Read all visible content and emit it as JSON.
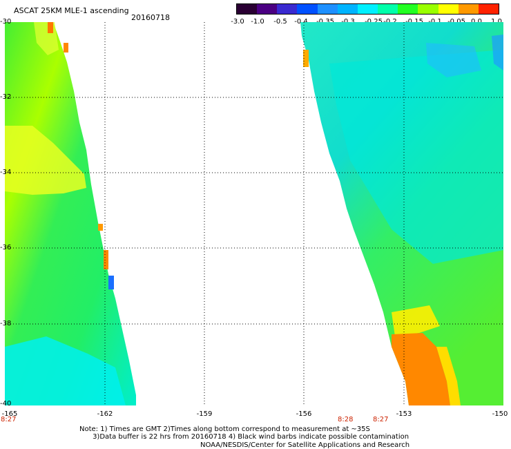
{
  "header": {
    "title": "ASCAT 25KM MLE-1 ascending",
    "date": "20160718"
  },
  "colorbar": {
    "labels": [
      "-3.0",
      "-1.0",
      "-0.5",
      "-0.4",
      "-0.35",
      "-0.3",
      "-0.25",
      "-0.2",
      "-0.15",
      "-0.1",
      "-0.05",
      "0.0",
      "1.0"
    ],
    "colors": [
      "#2a0033",
      "#4b0082",
      "#3a2ad0",
      "#0050ff",
      "#1e90ff",
      "#00b4ff",
      "#00f0ff",
      "#00ffaa",
      "#22ff22",
      "#99ff00",
      "#ffff00",
      "#ff9900",
      "#ff2200"
    ]
  },
  "axes": {
    "lat_labels": [
      "-30",
      "-32",
      "-34",
      "-36",
      "-38",
      "-40"
    ],
    "lon_labels": [
      "-165",
      "-162",
      "-159",
      "-156",
      "-153",
      "-150"
    ]
  },
  "times": [
    "8:27",
    "8:28",
    "8:27"
  ],
  "notes": {
    "line1": "Note: 1) Times are GMT 2)Times along bottom correspond to measurement at ~35S",
    "line2": "      3)Data buffer is 22 hrs from 20160718 4) Black wind barbs indicate possible contamination",
    "credit": "NOAA/NESDIS/Center for Satellite Applications and Research"
  }
}
